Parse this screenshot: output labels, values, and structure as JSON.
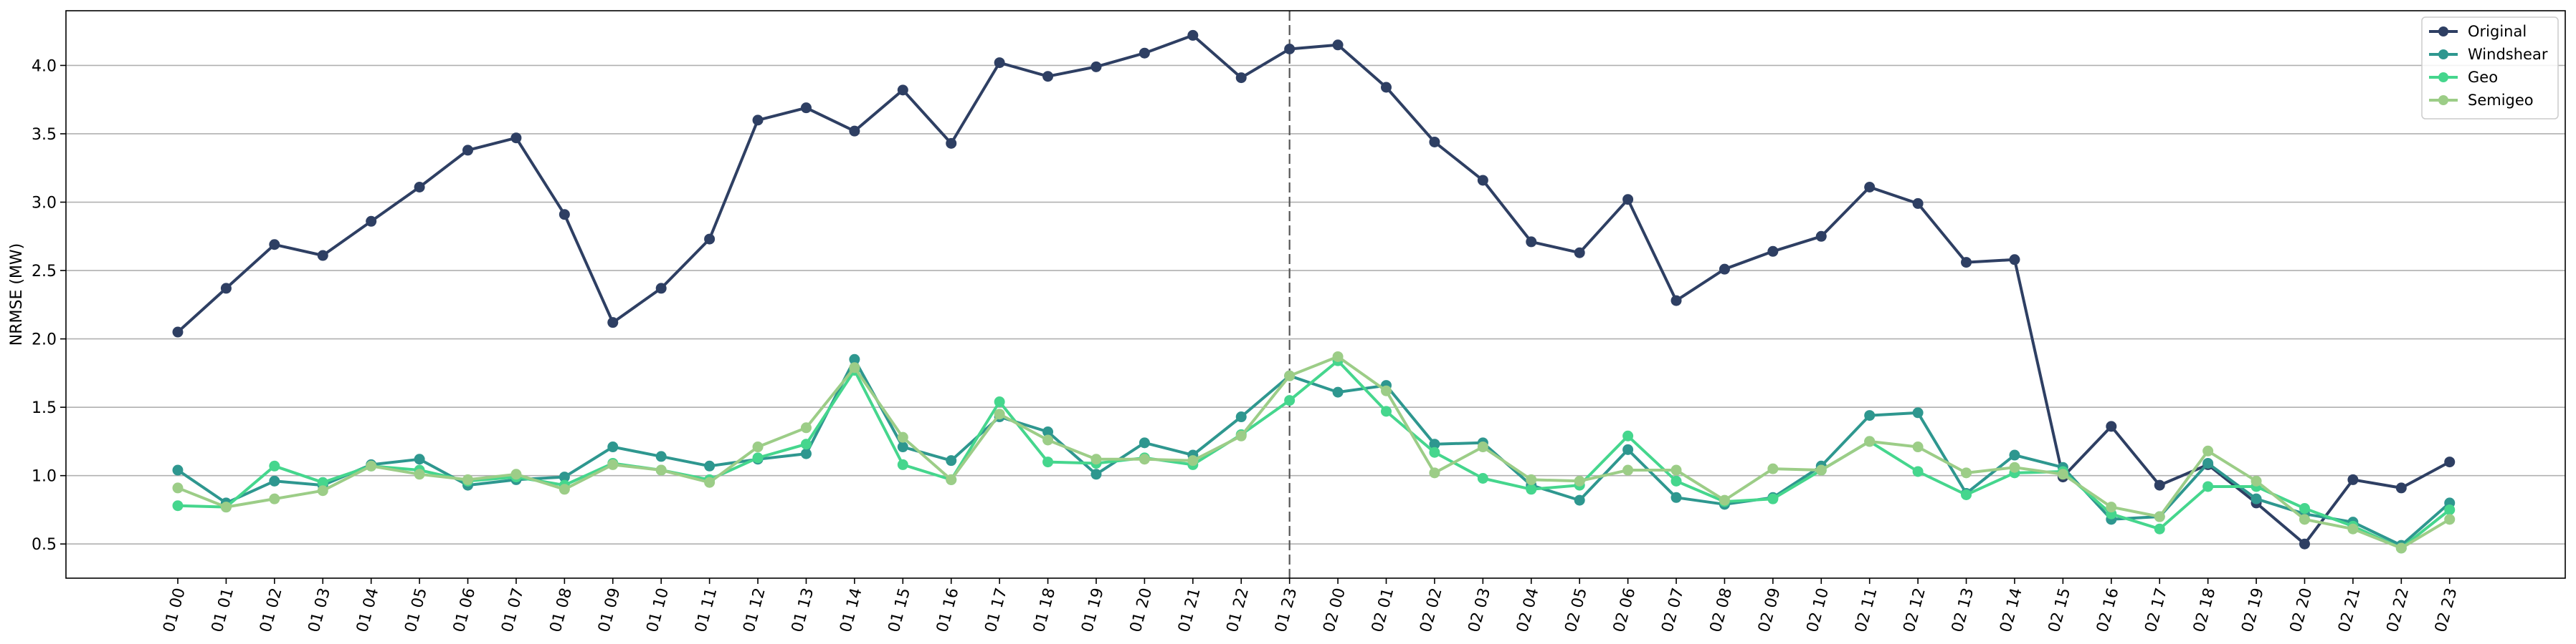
{
  "chart_data": {
    "type": "line",
    "ylabel": "NRMSE (MW)",
    "xlabel": "",
    "title": "",
    "ylim": [
      0.25,
      4.4
    ],
    "yticks": [
      0.5,
      1.0,
      1.5,
      2.0,
      2.5,
      3.0,
      3.5,
      4.0
    ],
    "ytick_labels": [
      "0.5",
      "1.0",
      "1.5",
      "2.0",
      "2.5",
      "3.0",
      "3.5",
      "4.0"
    ],
    "grid": "horizontal",
    "legend_position": "top-right",
    "vline_at_category": "01 23",
    "categories": [
      "01 00",
      "01 01",
      "01 02",
      "01 03",
      "01 04",
      "01 05",
      "01 06",
      "01 07",
      "01 08",
      "01 09",
      "01 10",
      "01 11",
      "01 12",
      "01 13",
      "01 14",
      "01 15",
      "01 16",
      "01 17",
      "01 18",
      "01 19",
      "01 20",
      "01 21",
      "01 22",
      "01 23",
      "02 00",
      "02 01",
      "02 02",
      "02 03",
      "02 04",
      "02 05",
      "02 06",
      "02 07",
      "02 08",
      "02 09",
      "02 10",
      "02 11",
      "02 12",
      "02 13",
      "02 14",
      "02 15",
      "02 16",
      "02 17",
      "02 18",
      "02 19",
      "02 20",
      "02 21",
      "02 22",
      "02 23"
    ],
    "series": [
      {
        "name": "Original",
        "color": "#2e3f63",
        "values": [
          2.05,
          2.37,
          2.69,
          2.61,
          2.86,
          3.11,
          3.38,
          3.47,
          2.91,
          2.12,
          2.37,
          2.73,
          3.6,
          3.69,
          3.52,
          3.82,
          3.43,
          4.02,
          3.92,
          3.99,
          4.09,
          4.22,
          3.91,
          4.12,
          4.15,
          3.84,
          3.44,
          3.16,
          2.71,
          2.63,
          3.02,
          2.28,
          2.51,
          2.64,
          2.75,
          3.11,
          2.99,
          2.56,
          2.58,
          0.99,
          1.36,
          0.93,
          1.08,
          0.8,
          0.5,
          0.97,
          0.91,
          1.1
        ]
      },
      {
        "name": "Windshear",
        "color": "#2e978f",
        "values": [
          1.04,
          0.8,
          0.96,
          0.93,
          1.08,
          1.12,
          0.93,
          0.97,
          0.99,
          1.21,
          1.14,
          1.07,
          1.12,
          1.16,
          1.85,
          1.21,
          1.11,
          1.43,
          1.32,
          1.01,
          1.24,
          1.15,
          1.43,
          1.73,
          1.61,
          1.66,
          1.23,
          1.24,
          0.93,
          0.82,
          1.19,
          0.84,
          0.79,
          0.84,
          1.07,
          1.44,
          1.46,
          0.87,
          1.15,
          1.06,
          0.68,
          0.7,
          1.09,
          0.83,
          0.72,
          0.66,
          0.49,
          0.8
        ]
      },
      {
        "name": "Geo",
        "color": "#45d68d",
        "values": [
          0.78,
          0.77,
          1.07,
          0.95,
          1.07,
          1.04,
          0.96,
          0.99,
          0.93,
          1.09,
          1.04,
          0.97,
          1.13,
          1.23,
          1.77,
          1.08,
          0.97,
          1.54,
          1.1,
          1.09,
          1.13,
          1.08,
          1.3,
          1.55,
          1.84,
          1.47,
          1.17,
          0.98,
          0.9,
          0.93,
          1.29,
          0.96,
          0.81,
          0.83,
          1.04,
          1.25,
          1.03,
          0.86,
          1.02,
          1.03,
          0.72,
          0.61,
          0.92,
          0.92,
          0.76,
          0.63,
          0.47,
          0.75
        ]
      },
      {
        "name": "Semigeo",
        "color": "#9ccd87",
        "values": [
          0.91,
          0.77,
          0.83,
          0.89,
          1.07,
          1.01,
          0.97,
          1.01,
          0.9,
          1.08,
          1.04,
          0.95,
          1.21,
          1.35,
          1.79,
          1.28,
          0.97,
          1.45,
          1.26,
          1.12,
          1.12,
          1.11,
          1.29,
          1.73,
          1.87,
          1.62,
          1.02,
          1.21,
          0.97,
          0.96,
          1.04,
          1.04,
          0.82,
          1.05,
          1.04,
          1.25,
          1.21,
          1.02,
          1.06,
          1.01,
          0.77,
          0.7,
          1.18,
          0.96,
          0.68,
          0.61,
          0.47,
          0.68
        ]
      }
    ]
  }
}
